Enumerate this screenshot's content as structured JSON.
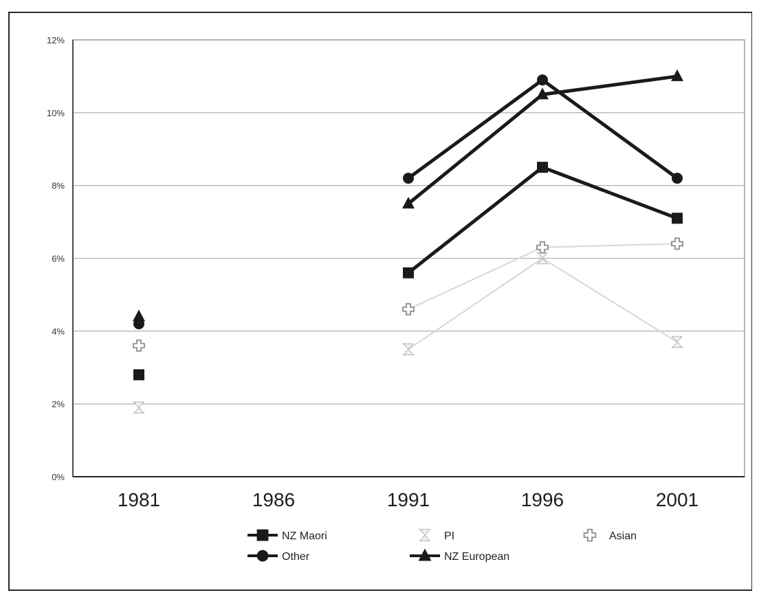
{
  "chart_data": {
    "type": "line",
    "title": "",
    "xlabel": "",
    "ylabel": "",
    "categories": [
      "1981",
      "1986",
      "1991",
      "1996",
      "2001"
    ],
    "y_ticks": [
      "0%",
      "2%",
      "4%",
      "6%",
      "8%",
      "10%",
      "12%"
    ],
    "ylim": [
      0,
      12
    ],
    "grid": true,
    "legend_position": "bottom",
    "series": [
      {
        "name": "NZ Maori",
        "values": [
          2.8,
          null,
          5.6,
          8.5,
          7.1
        ],
        "color": "#1a1a1a",
        "marker": "square"
      },
      {
        "name": "Other",
        "values": [
          4.2,
          null,
          8.2,
          10.9,
          8.2
        ],
        "color": "#1a1a1a",
        "marker": "circle"
      },
      {
        "name": "PI",
        "values": [
          1.9,
          null,
          3.5,
          6.0,
          3.7
        ],
        "color": "#c8c8c8",
        "marker": "hourglass"
      },
      {
        "name": "NZ European",
        "values": [
          4.4,
          null,
          7.5,
          10.5,
          11.0
        ],
        "color": "#1a1a1a",
        "marker": "triangle"
      },
      {
        "name": "Asian",
        "values": [
          3.6,
          null,
          4.6,
          6.3,
          6.4
        ],
        "color": "#cfcfcf",
        "marker": "cross"
      }
    ],
    "legend_order": [
      "NZ Maori",
      "PI",
      "Asian",
      "Other",
      "NZ European"
    ]
  }
}
